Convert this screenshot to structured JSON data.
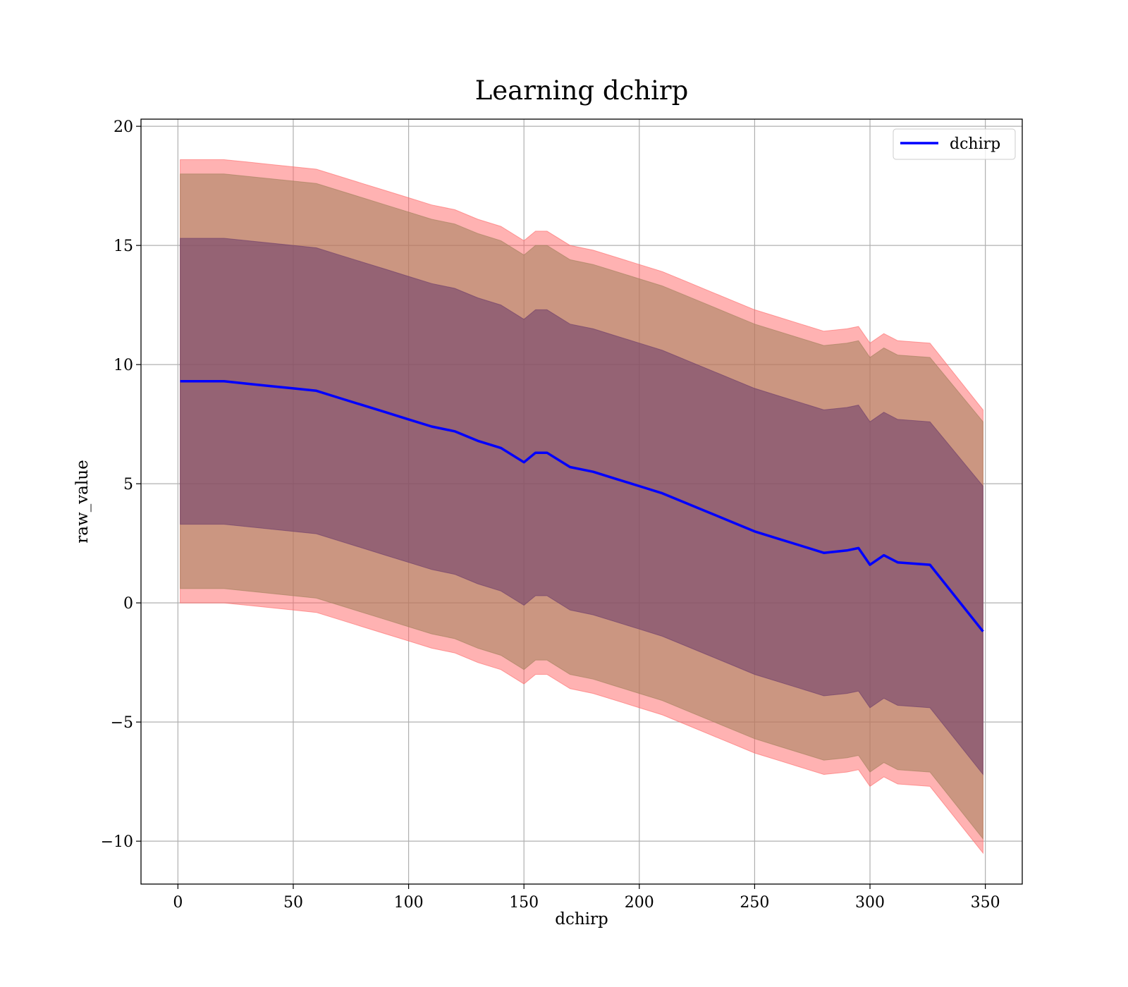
{
  "chart_data": {
    "type": "area",
    "title": "Learning dchirp",
    "xlabel": "dchirp",
    "ylabel": "raw_value",
    "xlim": [
      -16,
      366
    ],
    "ylim": [
      -11.8,
      20.3
    ],
    "x_ticks": [
      0,
      50,
      100,
      150,
      200,
      250,
      300,
      350
    ],
    "x_tick_labels": [
      "0",
      "50",
      "100",
      "150",
      "200",
      "250",
      "300",
      "350"
    ],
    "y_ticks": [
      -10,
      -5,
      0,
      5,
      10,
      15,
      20
    ],
    "y_tick_labels": [
      "−10",
      "−5",
      "0",
      "5",
      "10",
      "15",
      "20"
    ],
    "grid": true,
    "legend": {
      "placement": "top-right",
      "entries": [
        "dchirp"
      ]
    },
    "x": [
      1,
      10,
      20,
      30,
      40,
      50,
      60,
      70,
      80,
      90,
      100,
      110,
      120,
      130,
      140,
      150,
      155,
      160,
      170,
      180,
      190,
      200,
      210,
      220,
      230,
      240,
      250,
      260,
      270,
      280,
      290,
      295,
      300,
      306,
      312,
      326,
      349
    ],
    "series": [
      {
        "name": "dchirp",
        "color": "#0000ff",
        "values": [
          9.3,
          9.3,
          9.3,
          9.2,
          9.1,
          9.0,
          8.9,
          8.6,
          8.3,
          8.0,
          7.7,
          7.4,
          7.2,
          6.8,
          6.5,
          5.9,
          6.3,
          6.3,
          5.7,
          5.5,
          5.2,
          4.9,
          4.6,
          4.2,
          3.8,
          3.4,
          3.0,
          2.7,
          2.4,
          2.1,
          2.2,
          2.3,
          1.6,
          2.0,
          1.7,
          1.6,
          -1.2
        ]
      }
    ],
    "bands": [
      {
        "color": "#ff6666",
        "upper": [
          18.6,
          18.6,
          18.6,
          18.5,
          18.4,
          18.3,
          18.2,
          17.9,
          17.6,
          17.3,
          17.0,
          16.7,
          16.5,
          16.1,
          15.8,
          15.2,
          15.6,
          15.6,
          15.0,
          14.8,
          14.5,
          14.2,
          13.9,
          13.5,
          13.1,
          12.7,
          12.3,
          12.0,
          11.7,
          11.4,
          11.5,
          11.6,
          10.9,
          11.3,
          11.0,
          10.9,
          8.1
        ],
        "lower": [
          0.0,
          0.0,
          0.0,
          -0.1,
          -0.2,
          -0.3,
          -0.4,
          -0.7,
          -1.0,
          -1.3,
          -1.6,
          -1.9,
          -2.1,
          -2.5,
          -2.8,
          -3.4,
          -3.0,
          -3.0,
          -3.6,
          -3.8,
          -4.1,
          -4.4,
          -4.7,
          -5.1,
          -5.5,
          -5.9,
          -6.3,
          -6.6,
          -6.9,
          -7.2,
          -7.1,
          -7.0,
          -7.7,
          -7.3,
          -7.6,
          -7.7,
          -10.5
        ]
      },
      {
        "color": "#a0805a",
        "upper": [
          18.0,
          18.0,
          18.0,
          17.9,
          17.8,
          17.7,
          17.6,
          17.3,
          17.0,
          16.7,
          16.4,
          16.1,
          15.9,
          15.5,
          15.2,
          14.6,
          15.0,
          15.0,
          14.4,
          14.2,
          13.9,
          13.6,
          13.3,
          12.9,
          12.5,
          12.1,
          11.7,
          11.4,
          11.1,
          10.8,
          10.9,
          11.0,
          10.3,
          10.7,
          10.4,
          10.3,
          7.6
        ],
        "lower": [
          0.6,
          0.6,
          0.6,
          0.5,
          0.4,
          0.3,
          0.2,
          -0.1,
          -0.4,
          -0.7,
          -1.0,
          -1.3,
          -1.5,
          -1.9,
          -2.2,
          -2.8,
          -2.4,
          -2.4,
          -3.0,
          -3.2,
          -3.5,
          -3.8,
          -4.1,
          -4.5,
          -4.9,
          -5.3,
          -5.7,
          -6.0,
          -6.3,
          -6.6,
          -6.5,
          -6.4,
          -7.1,
          -6.7,
          -7.0,
          -7.1,
          -9.9
        ]
      },
      {
        "color": "#6a3a6a",
        "upper": [
          15.3,
          15.3,
          15.3,
          15.2,
          15.1,
          15.0,
          14.9,
          14.6,
          14.3,
          14.0,
          13.7,
          13.4,
          13.2,
          12.8,
          12.5,
          11.9,
          12.3,
          12.3,
          11.7,
          11.5,
          11.2,
          10.9,
          10.6,
          10.2,
          9.8,
          9.4,
          9.0,
          8.7,
          8.4,
          8.1,
          8.2,
          8.3,
          7.6,
          8.0,
          7.7,
          7.6,
          4.9
        ],
        "lower": [
          3.3,
          3.3,
          3.3,
          3.2,
          3.1,
          3.0,
          2.9,
          2.6,
          2.3,
          2.0,
          1.7,
          1.4,
          1.2,
          0.8,
          0.5,
          -0.1,
          0.3,
          0.3,
          -0.3,
          -0.5,
          -0.8,
          -1.1,
          -1.4,
          -1.8,
          -2.2,
          -2.6,
          -3.0,
          -3.3,
          -3.6,
          -3.9,
          -3.8,
          -3.7,
          -4.4,
          -4.0,
          -4.3,
          -4.4,
          -7.2
        ]
      }
    ]
  }
}
